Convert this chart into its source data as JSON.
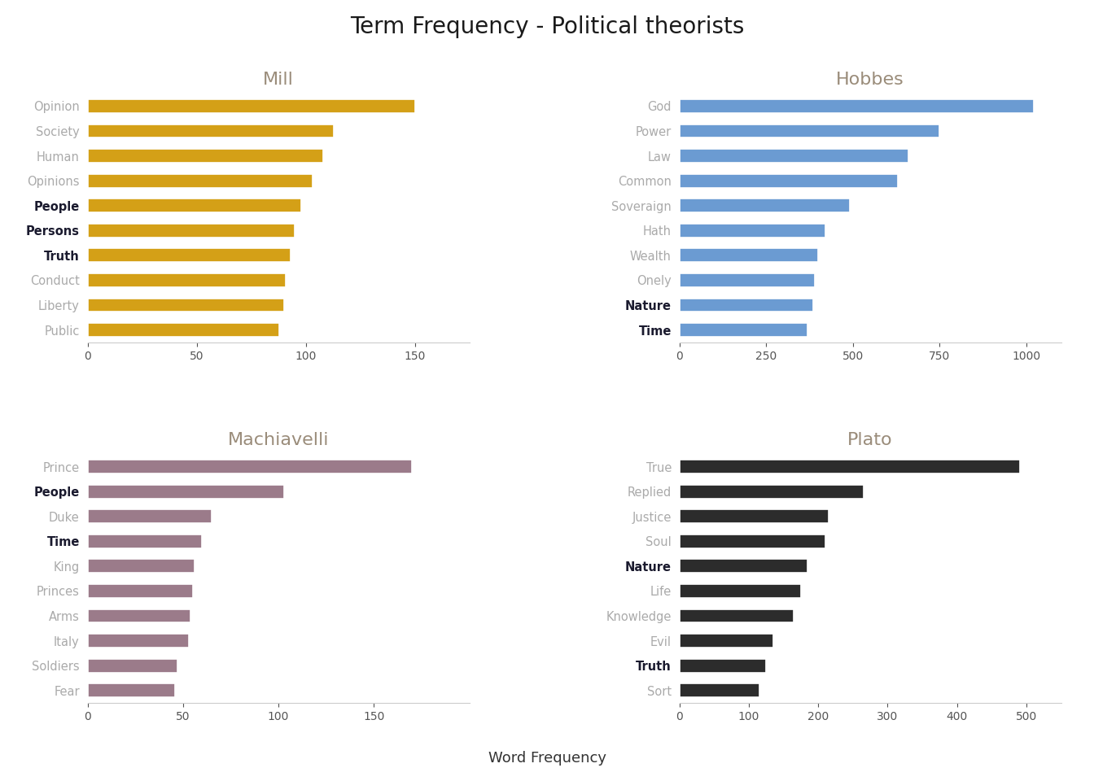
{
  "title": "Term Frequency - Political theorists",
  "title_fontsize": 20,
  "xlabel": "Word Frequency",
  "subplots": [
    {
      "title": "Mill",
      "title_color": "#9a8c7a",
      "bar_color": "#D4A017",
      "words": [
        "Opinion",
        "Society",
        "Human",
        "Opinions",
        "People",
        "Persons",
        "Truth",
        "Conduct",
        "Liberty",
        "Public"
      ],
      "values": [
        150,
        113,
        108,
        103,
        98,
        95,
        93,
        91,
        90,
        88
      ],
      "bold": [
        "People",
        "Persons",
        "Truth"
      ],
      "xlim": [
        0,
        175
      ],
      "xticks": [
        0,
        50,
        100,
        150
      ]
    },
    {
      "title": "Hobbes",
      "title_color": "#9a8c7a",
      "bar_color": "#6B9BD2",
      "words": [
        "God",
        "Power",
        "Law",
        "Common",
        "Soveraign",
        "Hath",
        "Wealth",
        "Onely",
        "Nature",
        "Time"
      ],
      "values": [
        1020,
        750,
        660,
        630,
        490,
        420,
        400,
        390,
        385,
        370
      ],
      "bold": [
        "Nature",
        "Time"
      ],
      "xlim": [
        0,
        1100
      ],
      "xticks": [
        0,
        250,
        500,
        750,
        1000
      ]
    },
    {
      "title": "Machiavelli",
      "title_color": "#9a8c7a",
      "bar_color": "#9B7B8A",
      "words": [
        "Prince",
        "People",
        "Duke",
        "Time",
        "King",
        "Princes",
        "Arms",
        "Italy",
        "Soldiers",
        "Fear"
      ],
      "values": [
        170,
        103,
        65,
        60,
        56,
        55,
        54,
        53,
        47,
        46
      ],
      "bold": [
        "People",
        "Time"
      ],
      "xlim": [
        0,
        200
      ],
      "xticks": [
        0,
        50,
        100,
        150
      ]
    },
    {
      "title": "Plato",
      "title_color": "#9a8c7a",
      "bar_color": "#2C2C2C",
      "words": [
        "True",
        "Replied",
        "Justice",
        "Soul",
        "Nature",
        "Life",
        "Knowledge",
        "Evil",
        "Truth",
        "Sort"
      ],
      "values": [
        490,
        265,
        215,
        210,
        185,
        175,
        165,
        135,
        125,
        115
      ],
      "bold": [
        "Nature",
        "Truth"
      ],
      "xlim": [
        0,
        550
      ],
      "xticks": [
        0,
        100,
        200,
        300,
        400,
        500
      ]
    }
  ],
  "label_color_normal": "#AAAAAA",
  "label_color_bold": "#1A1A2E",
  "background_color": "#FFFFFF"
}
